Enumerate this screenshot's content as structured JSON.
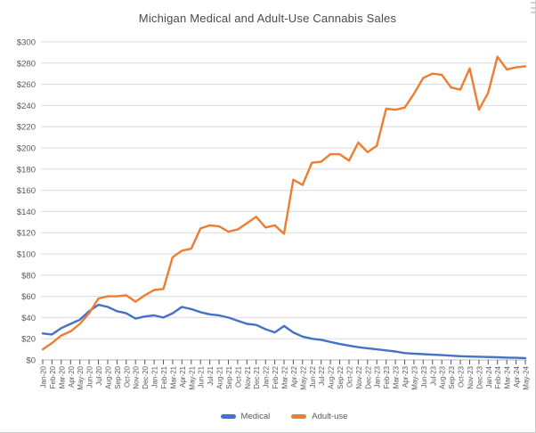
{
  "icons": {
    "top_right": "menu-icon"
  },
  "chart_data": {
    "type": "line",
    "title": "Michigan Medical and Adult-Use Cannabis Sales",
    "xlabel": "",
    "ylabel": "",
    "ylim": [
      0,
      300
    ],
    "ytick_step": 20,
    "ytick_prefix": "$",
    "grid": true,
    "legend_position": "bottom",
    "x": [
      "Jan-20",
      "Feb-20",
      "Mar-20",
      "Apr-20",
      "May-20",
      "Jun-20",
      "Jul-20",
      "Aug-20",
      "Sep-20",
      "Oct-20",
      "Nov-20",
      "Dec-20",
      "Jan-21",
      "Feb-21",
      "Mar-21",
      "Apr-21",
      "May-21",
      "Jun-21",
      "Jul-21",
      "Aug-21",
      "Sep-21",
      "Oct-21",
      "Nov-21",
      "Dec-21",
      "Jan-22",
      "Feb-22",
      "Mar-22",
      "Apr-22",
      "May-22",
      "Jun-22",
      "Jul-22",
      "Aug-22",
      "Sep-22",
      "Oct-22",
      "Nov-22",
      "Dec-22",
      "Jan-23",
      "Feb-23",
      "Mar-23",
      "Apr-23",
      "May-23",
      "Jun-23",
      "Jul-23",
      "Aug-23",
      "Sep-23",
      "Oct-23",
      "Nov-23",
      "Dec-23",
      "Jan-24",
      "Feb-24",
      "Mar-24",
      "Apr-24",
      "May-24"
    ],
    "series": [
      {
        "name": "Medical",
        "color": "#4472C4",
        "values": [
          25,
          24,
          30,
          34,
          38,
          46,
          52,
          50,
          46,
          44,
          39,
          41,
          42,
          40,
          44,
          50,
          48,
          45,
          43,
          42,
          40,
          37,
          34,
          33,
          29,
          26,
          32,
          26,
          22,
          20,
          19,
          17,
          15,
          13.5,
          12,
          11,
          10,
          9,
          8,
          6.5,
          6,
          5.5,
          5,
          4.5,
          4,
          3.5,
          3.2,
          3,
          2.8,
          2.5,
          2.2,
          2,
          1.8
        ]
      },
      {
        "name": "Adult-use",
        "color": "#ED7D31",
        "values": [
          10,
          16,
          23,
          27,
          34,
          44,
          58,
          60,
          60,
          61,
          55,
          61,
          66,
          67,
          97,
          103,
          105,
          124,
          127,
          126,
          121,
          123,
          129,
          135,
          125,
          127,
          119,
          170,
          165,
          186,
          187,
          194,
          194,
          188,
          205,
          196,
          202,
          237,
          236,
          238,
          251,
          266,
          270,
          269,
          257,
          255,
          275,
          236,
          252,
          286,
          274,
          276,
          277
        ]
      }
    ]
  }
}
